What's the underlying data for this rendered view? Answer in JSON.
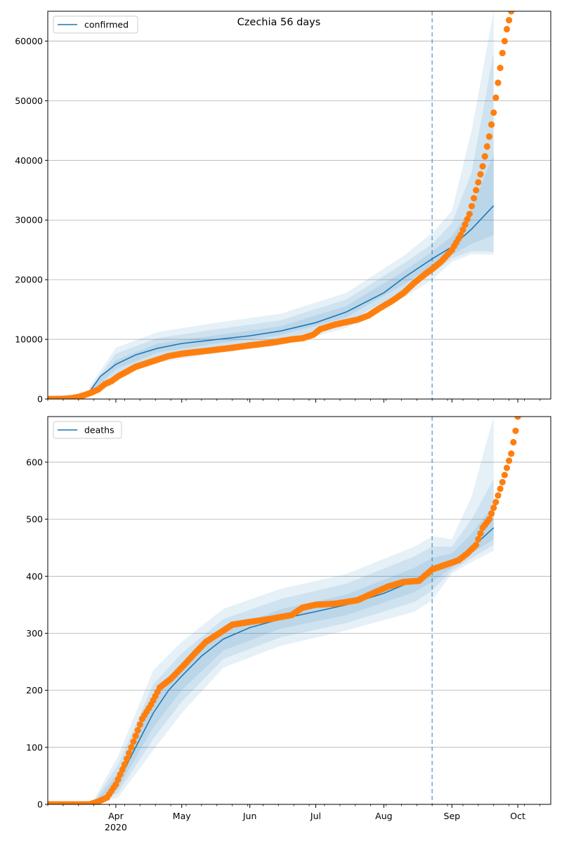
{
  "figure": {
    "title": "Czechia 56 days"
  },
  "colors": {
    "model": "#1f77b4",
    "observed": "#ff7f0e",
    "band": "#1f77b4",
    "grid": "#b0b0b0"
  },
  "x_axis": {
    "year_label": "2020",
    "ticks": [
      {
        "label": "Apr",
        "date": "2020-04-01"
      },
      {
        "label": "May",
        "date": "2020-05-01"
      },
      {
        "label": "Jun",
        "date": "2020-06-01"
      },
      {
        "label": "Jul",
        "date": "2020-07-01"
      },
      {
        "label": "Aug",
        "date": "2020-08-01"
      },
      {
        "label": "Sep",
        "date": "2020-09-01"
      },
      {
        "label": "Oct",
        "date": "2020-10-01"
      }
    ]
  },
  "chart_data": [
    {
      "type": "line",
      "legend": "confirmed",
      "legend_position": "top-left",
      "grid": "y",
      "xlim": [
        "2020-03-01",
        "2020-10-16"
      ],
      "ylim": [
        0,
        65000
      ],
      "yticks": [
        0,
        10000,
        20000,
        30000,
        40000,
        50000,
        60000
      ],
      "vline": "2020-08-23",
      "model": [
        [
          "2020-03-20",
          1200
        ],
        [
          "2020-03-25",
          3800
        ],
        [
          "2020-04-01",
          5800
        ],
        [
          "2020-04-10",
          7400
        ],
        [
          "2020-04-20",
          8500
        ],
        [
          "2020-05-01",
          9300
        ],
        [
          "2020-05-15",
          9900
        ],
        [
          "2020-06-01",
          10600
        ],
        [
          "2020-06-15",
          11400
        ],
        [
          "2020-07-01",
          12800
        ],
        [
          "2020-07-15",
          14600
        ],
        [
          "2020-08-01",
          17800
        ],
        [
          "2020-08-10",
          20300
        ],
        [
          "2020-08-23",
          23500
        ],
        [
          "2020-09-01",
          25500
        ],
        [
          "2020-09-10",
          28500
        ],
        [
          "2020-09-20",
          32400
        ]
      ],
      "bands": [
        [
          [
            "2020-03-20",
            1400,
            1000
          ],
          [
            "2020-04-01",
            6500,
            5000
          ],
          [
            "2020-04-20",
            9300,
            7800
          ],
          [
            "2020-05-15",
            10600,
            9200
          ],
          [
            "2020-06-15",
            12200,
            10700
          ],
          [
            "2020-07-15",
            15600,
            13700
          ],
          [
            "2020-08-10",
            21400,
            19200
          ],
          [
            "2020-08-23",
            24700,
            22300
          ],
          [
            "2020-09-01",
            27300,
            24200
          ],
          [
            "2020-09-10",
            32000,
            26000
          ],
          [
            "2020-09-20",
            41000,
            27500
          ]
        ],
        [
          [
            "2020-03-20",
            1700,
            900
          ],
          [
            "2020-04-01",
            7600,
            4300
          ],
          [
            "2020-04-20",
            10200,
            6900
          ],
          [
            "2020-05-15",
            11600,
            8400
          ],
          [
            "2020-06-15",
            13200,
            9900
          ],
          [
            "2020-07-15",
            16700,
            12800
          ],
          [
            "2020-08-10",
            22700,
            18100
          ],
          [
            "2020-08-23",
            26000,
            21000
          ],
          [
            "2020-09-01",
            29500,
            23600
          ],
          [
            "2020-09-10",
            38000,
            24800
          ],
          [
            "2020-09-20",
            58000,
            24700
          ]
        ],
        [
          [
            "2020-03-20",
            2000,
            800
          ],
          [
            "2020-04-01",
            8600,
            3600
          ],
          [
            "2020-04-20",
            11200,
            6100
          ],
          [
            "2020-05-15",
            12700,
            7600
          ],
          [
            "2020-06-15",
            14300,
            9000
          ],
          [
            "2020-07-15",
            17800,
            11900
          ],
          [
            "2020-08-10",
            24000,
            17000
          ],
          [
            "2020-08-23",
            27800,
            20000
          ],
          [
            "2020-09-01",
            31500,
            23000
          ],
          [
            "2020-09-10",
            45000,
            24300
          ],
          [
            "2020-09-20",
            65000,
            24200
          ]
        ]
      ],
      "observed": [
        [
          "2020-03-01",
          0
        ],
        [
          "2020-03-08",
          30
        ],
        [
          "2020-03-12",
          150
        ],
        [
          "2020-03-15",
          350
        ],
        [
          "2020-03-18",
          700
        ],
        [
          "2020-03-21",
          1100
        ],
        [
          "2020-03-24",
          1600
        ],
        [
          "2020-03-27",
          2500
        ],
        [
          "2020-03-30",
          3000
        ],
        [
          "2020-04-02",
          3800
        ],
        [
          "2020-04-06",
          4600
        ],
        [
          "2020-04-10",
          5400
        ],
        [
          "2020-04-15",
          6000
        ],
        [
          "2020-04-20",
          6600
        ],
        [
          "2020-04-25",
          7200
        ],
        [
          "2020-05-01",
          7600
        ],
        [
          "2020-05-08",
          7900
        ],
        [
          "2020-05-15",
          8200
        ],
        [
          "2020-05-22",
          8500
        ],
        [
          "2020-06-01",
          9000
        ],
        [
          "2020-06-10",
          9400
        ],
        [
          "2020-06-20",
          10000
        ],
        [
          "2020-06-25",
          10200
        ],
        [
          "2020-06-30",
          10800
        ],
        [
          "2020-07-03",
          11700
        ],
        [
          "2020-07-10",
          12500
        ],
        [
          "2020-07-20",
          13300
        ],
        [
          "2020-07-25",
          14000
        ],
        [
          "2020-07-30",
          15200
        ],
        [
          "2020-08-05",
          16500
        ],
        [
          "2020-08-10",
          17800
        ],
        [
          "2020-08-15",
          19500
        ],
        [
          "2020-08-20",
          21000
        ],
        [
          "2020-08-23",
          21800
        ],
        [
          "2020-08-27",
          23000
        ],
        [
          "2020-09-01",
          25000
        ],
        [
          "2020-09-05",
          27500
        ],
        [
          "2020-09-09",
          31000
        ],
        [
          "2020-09-12",
          35000
        ],
        [
          "2020-09-15",
          39000
        ],
        [
          "2020-09-18",
          44000
        ],
        [
          "2020-09-20",
          48000
        ],
        [
          "2020-09-22",
          53000
        ],
        [
          "2020-09-24",
          58000
        ],
        [
          "2020-09-26",
          62000
        ],
        [
          "2020-09-28",
          65000
        ]
      ]
    },
    {
      "type": "line",
      "legend": "deaths",
      "legend_position": "top-left",
      "grid": "y",
      "xlim": [
        "2020-03-01",
        "2020-10-16"
      ],
      "ylim": [
        0,
        680
      ],
      "yticks": [
        0,
        100,
        200,
        300,
        400,
        500,
        600
      ],
      "vline": "2020-08-23",
      "model": [
        [
          "2020-03-22",
          2
        ],
        [
          "2020-03-28",
          10
        ],
        [
          "2020-04-02",
          40
        ],
        [
          "2020-04-10",
          100
        ],
        [
          "2020-04-18",
          160
        ],
        [
          "2020-04-25",
          200
        ],
        [
          "2020-05-01",
          225
        ],
        [
          "2020-05-10",
          260
        ],
        [
          "2020-05-20",
          290
        ],
        [
          "2020-06-01",
          310
        ],
        [
          "2020-06-15",
          325
        ],
        [
          "2020-07-01",
          338
        ],
        [
          "2020-07-15",
          350
        ],
        [
          "2020-08-01",
          370
        ],
        [
          "2020-08-15",
          393
        ],
        [
          "2020-08-23",
          410
        ],
        [
          "2020-09-01",
          425
        ],
        [
          "2020-09-10",
          450
        ],
        [
          "2020-09-20",
          485
        ]
      ],
      "bands": [
        [
          [
            "2020-03-22",
            3,
            1
          ],
          [
            "2020-04-02",
            55,
            28
          ],
          [
            "2020-04-18",
            185,
            135
          ],
          [
            "2020-05-01",
            245,
            200
          ],
          [
            "2020-05-20",
            305,
            270
          ],
          [
            "2020-06-15",
            342,
            308
          ],
          [
            "2020-07-15",
            368,
            332
          ],
          [
            "2020-08-15",
            415,
            372
          ],
          [
            "2020-08-23",
            432,
            390
          ],
          [
            "2020-09-01",
            440,
            415
          ],
          [
            "2020-09-10",
            475,
            440
          ],
          [
            "2020-09-20",
            525,
            465
          ]
        ],
        [
          [
            "2020-03-22",
            5,
            0
          ],
          [
            "2020-04-02",
            70,
            20
          ],
          [
            "2020-04-18",
            210,
            115
          ],
          [
            "2020-05-01",
            265,
            180
          ],
          [
            "2020-05-20",
            325,
            255
          ],
          [
            "2020-06-15",
            360,
            293
          ],
          [
            "2020-07-15",
            387,
            318
          ],
          [
            "2020-08-15",
            435,
            355
          ],
          [
            "2020-08-23",
            452,
            375
          ],
          [
            "2020-09-01",
            452,
            410
          ],
          [
            "2020-09-10",
            500,
            432
          ],
          [
            "2020-09-20",
            570,
            455
          ]
        ],
        [
          [
            "2020-03-22",
            8,
            0
          ],
          [
            "2020-04-02",
            85,
            12
          ],
          [
            "2020-04-18",
            235,
            95
          ],
          [
            "2020-05-01",
            285,
            160
          ],
          [
            "2020-05-20",
            343,
            240
          ],
          [
            "2020-06-15",
            378,
            278
          ],
          [
            "2020-07-15",
            404,
            305
          ],
          [
            "2020-08-15",
            452,
            338
          ],
          [
            "2020-08-23",
            470,
            358
          ],
          [
            "2020-09-01",
            465,
            405
          ],
          [
            "2020-09-10",
            540,
            425
          ],
          [
            "2020-09-20",
            680,
            445
          ]
        ]
      ],
      "observed": [
        [
          "2020-03-01",
          0
        ],
        [
          "2020-03-10",
          0
        ],
        [
          "2020-03-20",
          0
        ],
        [
          "2020-03-24",
          5
        ],
        [
          "2020-03-28",
          12
        ],
        [
          "2020-04-01",
          35
        ],
        [
          "2020-04-05",
          70
        ],
        [
          "2020-04-09",
          110
        ],
        [
          "2020-04-13",
          150
        ],
        [
          "2020-04-17",
          175
        ],
        [
          "2020-04-21",
          205
        ],
        [
          "2020-04-26",
          220
        ],
        [
          "2020-05-01",
          240
        ],
        [
          "2020-05-07",
          265
        ],
        [
          "2020-05-12",
          285
        ],
        [
          "2020-05-18",
          300
        ],
        [
          "2020-05-24",
          315
        ],
        [
          "2020-06-01",
          320
        ],
        [
          "2020-06-10",
          325
        ],
        [
          "2020-06-20",
          332
        ],
        [
          "2020-06-25",
          345
        ],
        [
          "2020-07-01",
          350
        ],
        [
          "2020-07-10",
          352
        ],
        [
          "2020-07-20",
          358
        ],
        [
          "2020-07-28",
          372
        ],
        [
          "2020-08-03",
          382
        ],
        [
          "2020-08-10",
          390
        ],
        [
          "2020-08-17",
          392
        ],
        [
          "2020-08-23",
          412
        ],
        [
          "2020-08-29",
          420
        ],
        [
          "2020-09-04",
          428
        ],
        [
          "2020-09-08",
          440
        ],
        [
          "2020-09-12",
          455
        ],
        [
          "2020-09-15",
          485
        ],
        [
          "2020-09-18",
          500
        ],
        [
          "2020-09-21",
          530
        ],
        [
          "2020-09-24",
          565
        ],
        [
          "2020-09-26",
          590
        ],
        [
          "2020-09-28",
          615
        ],
        [
          "2020-09-30",
          655
        ],
        [
          "2020-10-01",
          680
        ]
      ]
    }
  ]
}
